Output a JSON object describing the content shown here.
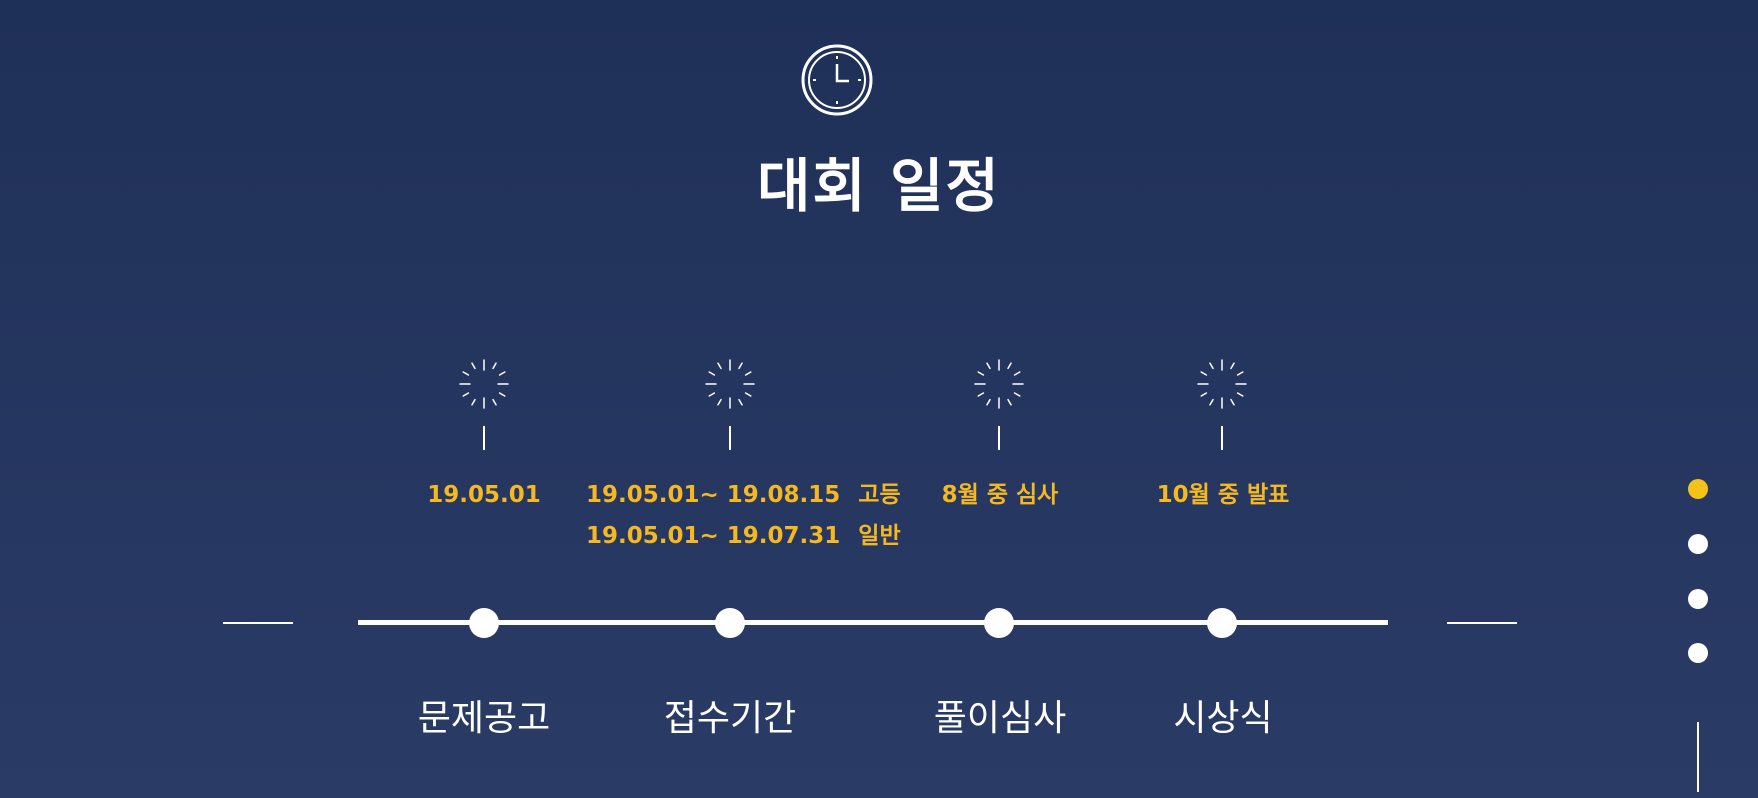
{
  "section": {
    "title": "대회 일정",
    "icon": "clock-icon"
  },
  "colors": {
    "background_top": "#1f3058",
    "background_bottom": "#2a3b66",
    "accent": "#f5b820",
    "text": "#ffffff"
  },
  "timeline": {
    "stages": [
      {
        "label": "문제공고",
        "icon": "sparkle-icon",
        "dates": [
          {
            "period": "19.05.01",
            "note": ""
          }
        ]
      },
      {
        "label": "접수기간",
        "icon": "sparkle-icon",
        "dates": [
          {
            "period": "19.05.01~ 19.08.15",
            "note": "고등"
          },
          {
            "period": "19.05.01~ 19.07.31",
            "note": "일반"
          }
        ]
      },
      {
        "label": "풀이심사",
        "icon": "sparkle-icon",
        "dates": [
          {
            "period": "8월 중 심사",
            "note": ""
          }
        ]
      },
      {
        "label": "시상식",
        "icon": "sparkle-icon",
        "dates": [
          {
            "period": "10월 중 발표",
            "note": ""
          }
        ]
      }
    ]
  },
  "pager": {
    "count": 4,
    "active_index": 0
  }
}
